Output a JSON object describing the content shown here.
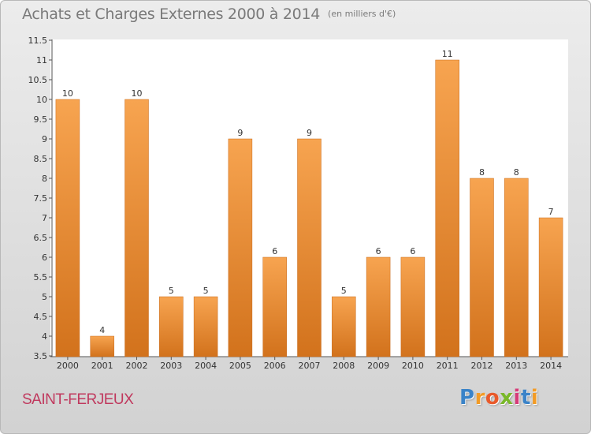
{
  "header": {
    "title": "Achats et Charges Externes 2000 à 2014",
    "subtitle": "(en milliers d'€)"
  },
  "footer": {
    "commune": "SAINT-FERJEUX",
    "logo_text": "Proxiti",
    "logo_letters": [
      {
        "ch": "P",
        "color": "#3a83c8"
      },
      {
        "ch": "r",
        "color": "#f29b26"
      },
      {
        "ch": "o",
        "color": "#e95a2b"
      },
      {
        "ch": "x",
        "color": "#79b829"
      },
      {
        "ch": "i",
        "color": "#d63b78"
      },
      {
        "ch": "t",
        "color": "#3a83c8"
      },
      {
        "ch": "i",
        "color": "#f29b26"
      }
    ]
  },
  "colors": {
    "bar_top": "#f7a450",
    "bar_bottom": "#d2721c",
    "bar_edge": "#c86a1a",
    "commune": "#c0395e"
  },
  "chart_data": {
    "type": "bar",
    "title": "Achats et Charges Externes 2000 à 2014",
    "subtitle": "(en milliers d'€)",
    "categories": [
      "2000",
      "2001",
      "2002",
      "2003",
      "2004",
      "2005",
      "2006",
      "2007",
      "2008",
      "2009",
      "2010",
      "2011",
      "2012",
      "2013",
      "2014"
    ],
    "values": [
      10,
      4,
      10,
      5,
      5,
      9,
      6,
      9,
      5,
      6,
      6,
      11,
      8,
      8,
      7
    ],
    "data_labels": [
      "10",
      "4",
      "10",
      "5",
      "5",
      "9",
      "6",
      "9",
      "5",
      "6",
      "6",
      "11",
      "8",
      "8",
      "7"
    ],
    "ylim": [
      3.5,
      11.5
    ],
    "yticks": [
      3.5,
      4,
      4.5,
      5,
      5.5,
      6,
      6.5,
      7,
      7.5,
      8,
      8.5,
      9,
      9.5,
      10,
      10.5,
      11,
      11.5
    ],
    "ytick_labels": [
      "3.5",
      "4",
      "4.5",
      "5",
      "5.5",
      "6",
      "6.5",
      "7",
      "7.5",
      "8",
      "8.5",
      "9",
      "9.5",
      "10",
      "10.5",
      "11",
      "11.5"
    ],
    "xlabel": "",
    "ylabel": "",
    "grid": false,
    "legend": "none"
  }
}
